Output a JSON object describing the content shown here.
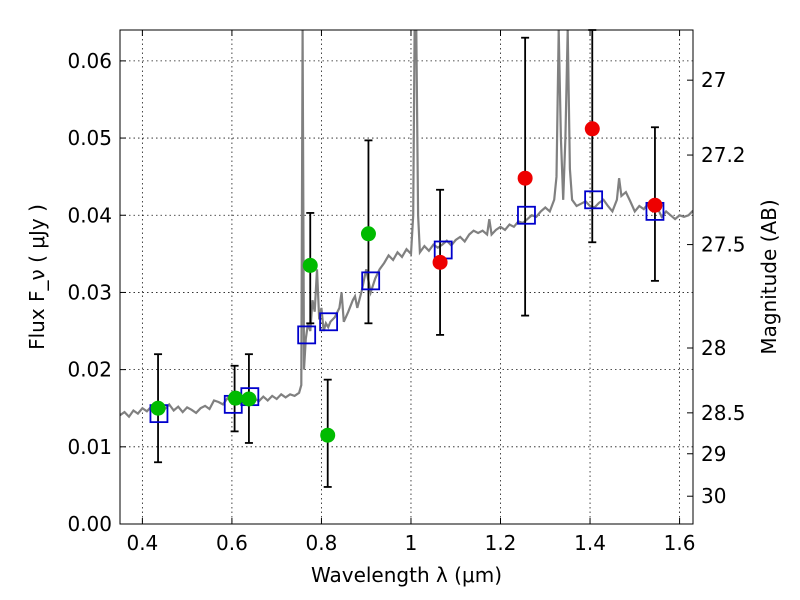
{
  "chart_data": {
    "type": "scatter",
    "title": "",
    "xlabel": "Wavelength  λ (μm)",
    "ylabel": "Flux  F_ν  ( μJy )",
    "ylabel_right": "Magnitude (AB)",
    "xlim": [
      0.35,
      1.63
    ],
    "ylim": [
      0.0,
      0.064
    ],
    "grid": true,
    "x_ticks": [
      0.4,
      0.6,
      0.8,
      1.0,
      1.2,
      1.4,
      1.6
    ],
    "x_tick_labels": [
      "0.4",
      "0.6",
      "0.8",
      "1",
      "1.2",
      "1.4",
      "1.6"
    ],
    "y_ticks": [
      0.0,
      0.01,
      0.02,
      0.03,
      0.04,
      0.05,
      0.06
    ],
    "y_tick_labels": [
      "0.00",
      "0.01",
      "0.02",
      "0.03",
      "0.04",
      "0.05",
      "0.06"
    ],
    "right_ticks": [
      {
        "label": "27",
        "flux": 0.0575
      },
      {
        "label": "27.2",
        "flux": 0.0478
      },
      {
        "label": "27.5",
        "flux": 0.0362
      },
      {
        "label": "28",
        "flux": 0.0228
      },
      {
        "label": "28.5",
        "flux": 0.0144
      },
      {
        "label": "29",
        "flux": 0.0091
      },
      {
        "label": "30",
        "flux": 0.0036
      }
    ],
    "colors": {
      "model": "#808080",
      "observed_optical": "#00bb00",
      "observed_nir": "#ee0000",
      "model_photometry": "#0000cc",
      "errorbar": "#000000"
    },
    "series": [
      {
        "kind": "line",
        "points": [
          [
            0.35,
            0.0141
          ],
          [
            0.36,
            0.0145
          ],
          [
            0.37,
            0.0139
          ],
          [
            0.38,
            0.0147
          ],
          [
            0.39,
            0.0143
          ],
          [
            0.4,
            0.015
          ],
          [
            0.41,
            0.0146
          ],
          [
            0.42,
            0.0152
          ],
          [
            0.43,
            0.0144
          ],
          [
            0.44,
            0.0154
          ],
          [
            0.45,
            0.0149
          ],
          [
            0.46,
            0.0155
          ],
          [
            0.47,
            0.0147
          ],
          [
            0.48,
            0.0152
          ],
          [
            0.49,
            0.0145
          ],
          [
            0.5,
            0.0151
          ],
          [
            0.51,
            0.0148
          ],
          [
            0.52,
            0.0144
          ],
          [
            0.53,
            0.015
          ],
          [
            0.54,
            0.0153
          ],
          [
            0.55,
            0.0149
          ],
          [
            0.56,
            0.016
          ],
          [
            0.57,
            0.0158
          ],
          [
            0.58,
            0.0155
          ],
          [
            0.59,
            0.0163
          ],
          [
            0.6,
            0.0158
          ],
          [
            0.61,
            0.0162
          ],
          [
            0.62,
            0.0156
          ],
          [
            0.63,
            0.0161
          ],
          [
            0.64,
            0.0157
          ],
          [
            0.65,
            0.0163
          ],
          [
            0.66,
            0.0159
          ],
          [
            0.67,
            0.0165
          ],
          [
            0.68,
            0.016
          ],
          [
            0.69,
            0.0166
          ],
          [
            0.7,
            0.0162
          ],
          [
            0.71,
            0.0168
          ],
          [
            0.72,
            0.0164
          ],
          [
            0.73,
            0.0168
          ],
          [
            0.74,
            0.0166
          ],
          [
            0.75,
            0.017
          ],
          [
            0.755,
            0.018
          ],
          [
            0.758,
            0.064
          ],
          [
            0.761,
            0.02
          ],
          [
            0.765,
            0.024
          ],
          [
            0.77,
            0.026
          ],
          [
            0.775,
            0.025
          ],
          [
            0.78,
            0.029
          ],
          [
            0.785,
            0.0275
          ],
          [
            0.79,
            0.033
          ],
          [
            0.795,
            0.0265
          ],
          [
            0.8,
            0.028
          ],
          [
            0.805,
            0.025
          ],
          [
            0.81,
            0.026
          ],
          [
            0.815,
            0.0255
          ],
          [
            0.82,
            0.0262
          ],
          [
            0.83,
            0.0268
          ],
          [
            0.84,
            0.028
          ],
          [
            0.845,
            0.03
          ],
          [
            0.85,
            0.0262
          ],
          [
            0.86,
            0.0275
          ],
          [
            0.87,
            0.029
          ],
          [
            0.875,
            0.0295
          ],
          [
            0.88,
            0.028
          ],
          [
            0.89,
            0.0302
          ],
          [
            0.9,
            0.033
          ],
          [
            0.91,
            0.03
          ],
          [
            0.92,
            0.0318
          ],
          [
            0.93,
            0.033
          ],
          [
            0.94,
            0.0338
          ],
          [
            0.95,
            0.0348
          ],
          [
            0.96,
            0.0342
          ],
          [
            0.97,
            0.0352
          ],
          [
            0.98,
            0.0346
          ],
          [
            0.99,
            0.0356
          ],
          [
            1.0,
            0.035
          ],
          [
            1.005,
            0.04
          ],
          [
            1.008,
            0.064
          ],
          [
            1.012,
            0.064
          ],
          [
            1.016,
            0.04
          ],
          [
            1.02,
            0.0352
          ],
          [
            1.03,
            0.036
          ],
          [
            1.04,
            0.0354
          ],
          [
            1.05,
            0.0362
          ],
          [
            1.06,
            0.0358
          ],
          [
            1.07,
            0.0362
          ],
          [
            1.08,
            0.0367
          ],
          [
            1.09,
            0.0361
          ],
          [
            1.1,
            0.0368
          ],
          [
            1.11,
            0.0372
          ],
          [
            1.12,
            0.0366
          ],
          [
            1.13,
            0.0375
          ],
          [
            1.14,
            0.038
          ],
          [
            1.15,
            0.0377
          ],
          [
            1.16,
            0.038
          ],
          [
            1.17,
            0.0375
          ],
          [
            1.175,
            0.0395
          ],
          [
            1.18,
            0.0375
          ],
          [
            1.19,
            0.0381
          ],
          [
            1.2,
            0.0385
          ],
          [
            1.21,
            0.0381
          ],
          [
            1.22,
            0.0388
          ],
          [
            1.23,
            0.0385
          ],
          [
            1.24,
            0.0392
          ],
          [
            1.25,
            0.039
          ],
          [
            1.26,
            0.0395
          ],
          [
            1.27,
            0.04
          ],
          [
            1.28,
            0.0398
          ],
          [
            1.29,
            0.0405
          ],
          [
            1.3,
            0.041
          ],
          [
            1.31,
            0.0405
          ],
          [
            1.32,
            0.042
          ],
          [
            1.325,
            0.045
          ],
          [
            1.33,
            0.064
          ],
          [
            1.335,
            0.05
          ],
          [
            1.34,
            0.042
          ],
          [
            1.345,
            0.05
          ],
          [
            1.35,
            0.064
          ],
          [
            1.355,
            0.046
          ],
          [
            1.36,
            0.042
          ],
          [
            1.37,
            0.0412
          ],
          [
            1.38,
            0.0415
          ],
          [
            1.39,
            0.0418
          ],
          [
            1.4,
            0.0412
          ],
          [
            1.41,
            0.041
          ],
          [
            1.42,
            0.0416
          ],
          [
            1.43,
            0.042
          ],
          [
            1.44,
            0.0412
          ],
          [
            1.45,
            0.0405
          ],
          [
            1.46,
            0.042
          ],
          [
            1.465,
            0.0448
          ],
          [
            1.47,
            0.0425
          ],
          [
            1.48,
            0.043
          ],
          [
            1.49,
            0.0418
          ],
          [
            1.5,
            0.0405
          ],
          [
            1.51,
            0.0412
          ],
          [
            1.52,
            0.0408
          ],
          [
            1.53,
            0.0415
          ],
          [
            1.54,
            0.0405
          ],
          [
            1.55,
            0.041
          ],
          [
            1.56,
            0.0398
          ],
          [
            1.57,
            0.0405
          ],
          [
            1.58,
            0.04
          ],
          [
            1.59,
            0.0395
          ],
          [
            1.6,
            0.04
          ],
          [
            1.61,
            0.0398
          ],
          [
            1.62,
            0.04
          ],
          [
            1.63,
            0.0406
          ]
        ]
      },
      {
        "kind": "errorbars",
        "points": [
          {
            "x": 0.435,
            "lo": 0.008,
            "hi": 0.022
          },
          {
            "x": 0.606,
            "lo": 0.012,
            "hi": 0.0205
          },
          {
            "x": 0.638,
            "lo": 0.0105,
            "hi": 0.022
          },
          {
            "x": 0.775,
            "lo": 0.026,
            "hi": 0.0403
          },
          {
            "x": 0.814,
            "lo": 0.0048,
            "hi": 0.0187
          },
          {
            "x": 0.905,
            "lo": 0.026,
            "hi": 0.0497
          },
          {
            "x": 1.065,
            "lo": 0.0245,
            "hi": 0.0433
          },
          {
            "x": 1.255,
            "lo": 0.027,
            "hi": 0.063
          },
          {
            "x": 1.405,
            "lo": 0.0365,
            "hi": 0.064
          },
          {
            "x": 1.545,
            "lo": 0.0315,
            "hi": 0.0514
          }
        ]
      },
      {
        "kind": "squares",
        "points": [
          [
            0.437,
            0.0143
          ],
          [
            0.603,
            0.0155
          ],
          [
            0.64,
            0.0165
          ],
          [
            0.767,
            0.0245
          ],
          [
            0.816,
            0.0262
          ],
          [
            0.91,
            0.0315
          ],
          [
            1.072,
            0.0355
          ],
          [
            1.258,
            0.04
          ],
          [
            1.408,
            0.042
          ],
          [
            1.545,
            0.0405
          ]
        ]
      },
      {
        "kind": "circles-optical",
        "points": [
          [
            0.435,
            0.015
          ],
          [
            0.608,
            0.0163
          ],
          [
            0.638,
            0.0162
          ],
          [
            0.775,
            0.0335
          ],
          [
            0.814,
            0.0115
          ],
          [
            0.905,
            0.0376
          ]
        ]
      },
      {
        "kind": "circles-nir",
        "points": [
          [
            1.065,
            0.0339
          ],
          [
            1.255,
            0.0448
          ],
          [
            1.405,
            0.0512
          ],
          [
            1.545,
            0.0413
          ]
        ]
      }
    ]
  }
}
